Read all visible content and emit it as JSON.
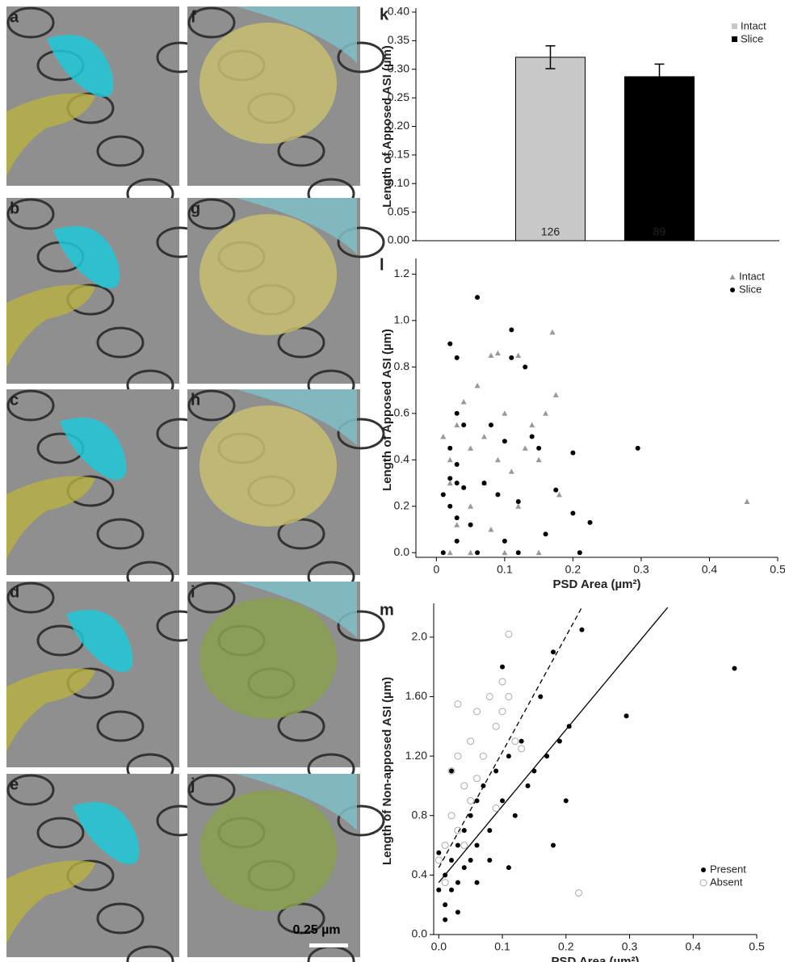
{
  "panels": [
    "a",
    "b",
    "c",
    "d",
    "e",
    "f",
    "g",
    "h",
    "i",
    "j"
  ],
  "scale_bar": "0.25 µm",
  "chart_data": [
    {
      "type": "bar",
      "label": "k",
      "ylabel": "Length of Apposed ASI (µm)",
      "ylim": [
        0,
        0.4
      ],
      "yticks": [
        {
          "value": 0,
          "label": "0.00"
        },
        0.05,
        {
          "value": 0.1,
          "label": "0.10"
        },
        0.15,
        {
          "value": 0.2,
          "label": "0.20"
        },
        0.25,
        {
          "value": 0.3,
          "label": "0.30"
        },
        0.35,
        {
          "value": 0.4,
          "label": "0.40"
        }
      ],
      "legend": "upper right",
      "series": [
        {
          "name": "Intact",
          "color": "#c8c8c8",
          "values": [
            0.321
          ],
          "errors": [
            0.02
          ],
          "n_labels": [
            "126"
          ]
        },
        {
          "name": "Slice",
          "color": "#000000",
          "values": [
            0.287
          ],
          "errors": [
            0.022
          ],
          "n_labels": [
            "89"
          ]
        }
      ]
    },
    {
      "type": "scatter",
      "label": "l",
      "ylabel": "Length of Apposed ASI (µm)",
      "xlabel": "PSD Area (µm²)",
      "xlim": [
        -0.03,
        0.5
      ],
      "ylim": [
        -0.02,
        1.25
      ],
      "xticks": [
        0,
        0.1,
        0.2,
        0.3,
        0.4,
        0.5
      ],
      "yticks": [
        {
          "value": 0,
          "label": "0.0"
        },
        0.2,
        0.4,
        0.6,
        0.8,
        {
          "value": 1,
          "label": "1.0"
        },
        1.2
      ],
      "legend": "upper right",
      "series": [
        {
          "name": "Intact",
          "color": "#999999",
          "marker": "triangle",
          "x": [
            0.01,
            0.02,
            0.03,
            0.04,
            0.05,
            0.06,
            0.07,
            0.08,
            0.09,
            0.1,
            0.11,
            0.12,
            0.13,
            0.14,
            0.15,
            0.16,
            0.17,
            0.18,
            0.175,
            0.12,
            0.08,
            0.05,
            0.03,
            0.02,
            0.455,
            0.1,
            0.05,
            0.15,
            0.02,
            0.07,
            0.09
          ],
          "y": [
            0.5,
            0.3,
            0.55,
            0.65,
            0.45,
            0.72,
            0.3,
            0.85,
            0.86,
            0.6,
            0.35,
            0.85,
            0.45,
            0.55,
            0.4,
            0.6,
            0.95,
            0.25,
            0.68,
            0.2,
            0.1,
            0.2,
            0.12,
            0.4,
            0.22,
            0,
            0,
            0,
            0,
            0.5,
            0.4
          ]
        },
        {
          "name": "Slice",
          "color": "#000000",
          "marker": "circle",
          "x": [
            0.06,
            0.11,
            0.02,
            0.03,
            0.11,
            0.13,
            0.08,
            0.03,
            0.04,
            0.1,
            0.14,
            0.15,
            0.2,
            0.295,
            0.02,
            0.03,
            0.04,
            0.01,
            0.02,
            0.03,
            0.05,
            0.07,
            0.09,
            0.12,
            0.175,
            0.2,
            0.225,
            0.16,
            0.1,
            0.03,
            0.01,
            0.06,
            0.12,
            0.21,
            0.03,
            0.02
          ],
          "y": [
            1.1,
            0.96,
            0.9,
            0.84,
            0.84,
            0.8,
            0.55,
            0.6,
            0.55,
            0.48,
            0.5,
            0.45,
            0.43,
            0.45,
            0.32,
            0.3,
            0.28,
            0.25,
            0.2,
            0.15,
            0.12,
            0.3,
            0.25,
            0.22,
            0.27,
            0.17,
            0.13,
            0.08,
            0.05,
            0.05,
            0,
            0,
            0,
            0,
            0.38,
            0.45
          ]
        }
      ]
    },
    {
      "type": "scatter",
      "label": "m",
      "ylabel": "Length of Non-apposed ASI (µm)",
      "xlabel": "PSD Area (µm²)",
      "xlim": [
        -0.008,
        0.5
      ],
      "ylim": [
        0,
        2.2
      ],
      "xticks": [
        {
          "value": 0,
          "label": "0.0"
        },
        0.1,
        0.2,
        0.3,
        0.4,
        0.5
      ],
      "yticks": [
        {
          "value": 0,
          "label": "0.0"
        },
        0.4,
        0.8,
        {
          "value": 1.2,
          "label": "1.20"
        },
        {
          "value": 1.6,
          "label": "1.60"
        },
        {
          "value": 2,
          "label": "2.0"
        }
      ],
      "legend": "lower right",
      "fit_lines": [
        {
          "style": "dashed",
          "x": [
            0,
            0.225
          ],
          "y": [
            0.45,
            2.2
          ]
        },
        {
          "style": "solid",
          "x": [
            0,
            0.36
          ],
          "y": [
            0.35,
            2.2
          ]
        }
      ],
      "series": [
        {
          "name": "Present",
          "color": "#000000",
          "marker": "circle",
          "x": [
            0,
            0.01,
            0.01,
            0.02,
            0.02,
            0.03,
            0.03,
            0.04,
            0.04,
            0.05,
            0.05,
            0.06,
            0.06,
            0.07,
            0.08,
            0.09,
            0.1,
            0.1,
            0.11,
            0.12,
            0.13,
            0.14,
            0.15,
            0.16,
            0.17,
            0.18,
            0.18,
            0.19,
            0.2,
            0.205,
            0.225,
            0.295,
            0.465,
            0.02,
            0.03,
            0.08,
            0.11,
            0,
            0.01,
            0.06
          ],
          "y": [
            0.3,
            0.4,
            0.2,
            0.5,
            0.3,
            0.6,
            0.35,
            0.7,
            0.45,
            0.8,
            0.5,
            0.9,
            0.6,
            1,
            0.7,
            1.1,
            0.9,
            1.8,
            1.2,
            0.8,
            1.3,
            1,
            1.1,
            1.6,
            1.2,
            1.9,
            0.6,
            1.3,
            0.9,
            1.4,
            2.05,
            1.47,
            1.79,
            1.1,
            0.15,
            0.5,
            0.45,
            0.55,
            0.1,
            0.35
          ]
        },
        {
          "name": "Absent",
          "color": "#aaaaaa",
          "marker": "open",
          "x": [
            0,
            0.01,
            0.02,
            0.02,
            0.03,
            0.03,
            0.04,
            0.05,
            0.05,
            0.06,
            0.07,
            0.08,
            0.09,
            0.1,
            0.1,
            0.11,
            0.11,
            0.12,
            0.13,
            0.09,
            0.04,
            0.22,
            0.01,
            0.03,
            0.06
          ],
          "y": [
            0.5,
            0.6,
            0.8,
            1.1,
            1.2,
            0.7,
            1,
            1.3,
            0.9,
            1.5,
            1.2,
            1.6,
            1.4,
            1.7,
            1.5,
            1.6,
            2.02,
            1.3,
            1.25,
            0.85,
            0.6,
            0.28,
            0.35,
            1.55,
            1.05
          ]
        }
      ]
    }
  ]
}
